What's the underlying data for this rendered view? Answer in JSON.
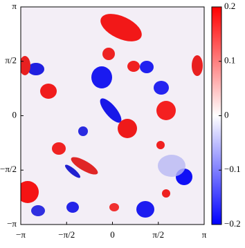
{
  "chart_data": {
    "type": "heatmap",
    "xlim": [
      -3.14159,
      3.14159
    ],
    "ylim": [
      -3.14159,
      3.14159
    ],
    "xticks": [
      {
        "value": -3.14159,
        "label": "−π"
      },
      {
        "value": -1.5708,
        "label": "−π/2"
      },
      0,
      {
        "value": 1.5708,
        "label": "π/2"
      },
      {
        "value": 3.14159,
        "label": "π"
      }
    ],
    "yticks": [
      {
        "value": -3.14159,
        "label": "−π"
      },
      {
        "value": -1.5708,
        "label": "−π/2"
      },
      0,
      {
        "value": 1.5708,
        "label": "π/2"
      },
      {
        "value": 3.14159,
        "label": "π"
      }
    ],
    "clim": [
      -0.2,
      0.2
    ],
    "cticks": [
      {
        "value": -0.2,
        "label": "−0.2"
      },
      {
        "value": -0.1,
        "label": "−0.1"
      },
      0,
      0.1,
      0.2
    ],
    "colormap": [
      "#0000ff",
      "#ffffff",
      "#ff0000"
    ]
  }
}
